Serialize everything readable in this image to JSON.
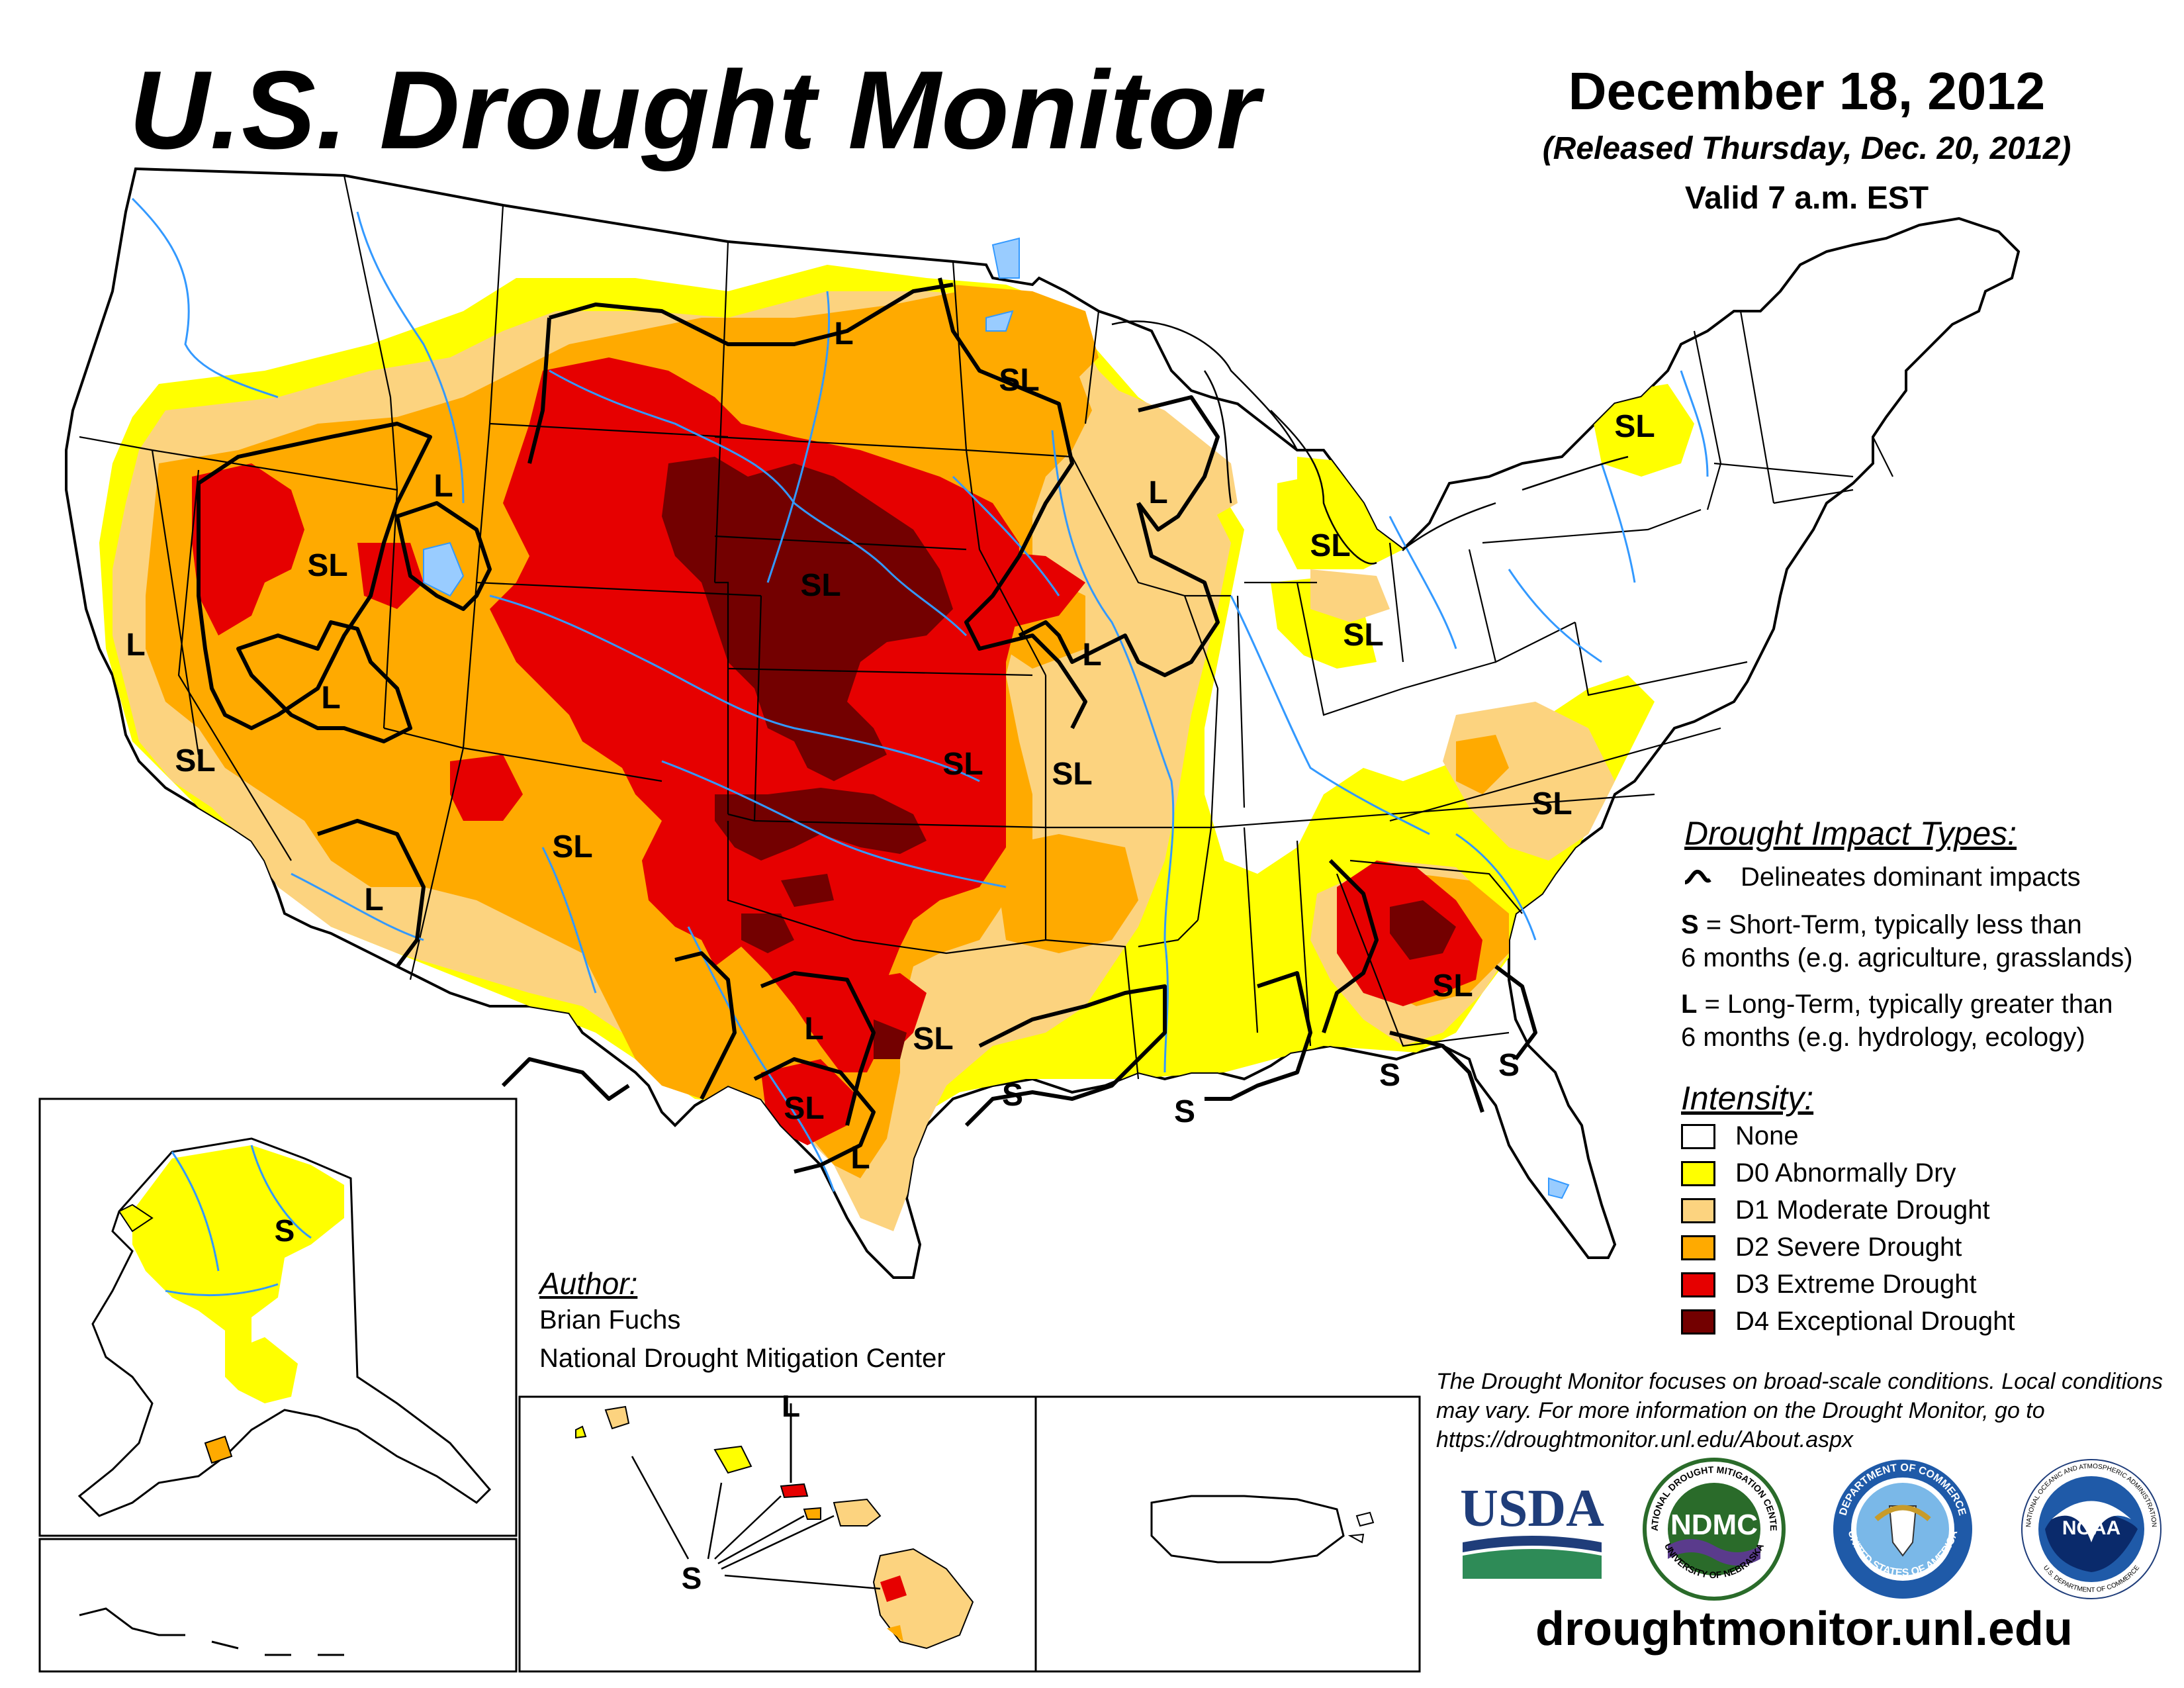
{
  "header": {
    "title": "U.S. Drought Monitor",
    "date": "December 18, 2012",
    "released": "(Released Thursday, Dec. 20, 2012)",
    "valid": "Valid 7 a.m. EST"
  },
  "impact_types": {
    "heading": "Drought Impact Types:",
    "line_desc": "Delineates dominant impacts",
    "s_key": "S",
    "s_desc_1": " = Short-Term, typically less than",
    "s_desc_2": "6 months (e.g. agriculture, grasslands)",
    "l_key": "L",
    "l_desc_1": " = Long-Term, typically greater than",
    "l_desc_2": "6 months (e.g. hydrology, ecology)"
  },
  "intensity": {
    "heading": "Intensity:",
    "items": [
      {
        "label": "None",
        "color": "#ffffff"
      },
      {
        "label": "D0 Abnormally Dry",
        "color": "#ffff00"
      },
      {
        "label": "D1 Moderate Drought",
        "color": "#fcd37f"
      },
      {
        "label": "D2 Severe Drought",
        "color": "#ffaa00"
      },
      {
        "label": "D3 Extreme Drought",
        "color": "#e60000"
      },
      {
        "label": "D4 Exceptional Drought",
        "color": "#730000"
      }
    ]
  },
  "author": {
    "heading": "Author:",
    "name": "Brian Fuchs",
    "org": "National Drought Mitigation Center"
  },
  "disclaimer": "The Drought Monitor focuses on broad-scale conditions. Local conditions may vary. For more information on the Drought Monitor, go to https://droughtmonitor.unl.edu/About.aspx",
  "website": "droughtmonitor.unl.edu",
  "map_labels": {
    "sl": "SL",
    "l": "L",
    "s": "S"
  },
  "logos": {
    "usda": "USDA",
    "ndmc": "NDMC",
    "ndmc_ring_top": "NATIONAL DROUGHT MITIGATION CENTER",
    "ndmc_ring_bottom": "UNIVERSITY OF NEBRASKA",
    "commerce_ring_top": "DEPARTMENT OF COMMERCE",
    "commerce_ring_bottom": "UNITED STATES OF AMERICA",
    "noaa": "NOAA",
    "noaa_ring": "NATIONAL OCEANIC AND ATMOSPHERIC ADMINISTRATION",
    "noaa_ring_bottom": "U.S. DEPARTMENT OF COMMERCE"
  },
  "colors": {
    "none": "#ffffff",
    "d0": "#ffff00",
    "d1": "#fcd37f",
    "d2": "#ffaa00",
    "d3": "#e60000",
    "d4": "#730000",
    "water": "#3399ff",
    "lake": "#99ccff"
  }
}
